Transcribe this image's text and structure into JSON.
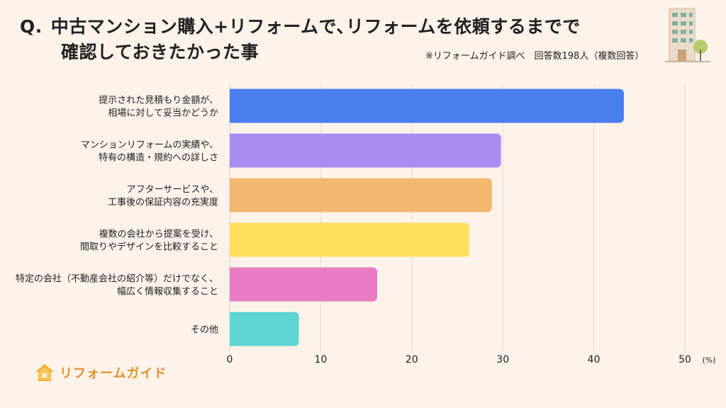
{
  "header": {
    "q_mark": "Q.",
    "title_line1": "中古マンション購入+リフォームで､リフォームを依頼するまでで",
    "title_line2": "確認しておきたかった事",
    "source_note": "※リフォームガイド調べ　回答数198人（複数回答）"
  },
  "logo": {
    "text": "リフォームガイド",
    "icon": "house-logo-icon"
  },
  "illustration": {
    "icon": "apartment-building-icon"
  },
  "chart_data": {
    "type": "bar",
    "orientation": "horizontal",
    "categories": [
      [
        "提示された見積もり金額が、",
        "相場に対して妥当かどうか"
      ],
      [
        "マンションリフォームの実績や、",
        "特有の構造・規約への詳しさ"
      ],
      [
        "アフターサービスや、",
        "工事後の保証内容の充実度"
      ],
      [
        "複数の会社から提案を受け、",
        "間取りやデザインを比較すること"
      ],
      [
        "特定の会社（不動産会社の紹介等）だけでなく、",
        "幅広く情報収集すること"
      ],
      [
        "その他"
      ]
    ],
    "values": [
      43.3,
      29.8,
      28.8,
      26.3,
      16.2,
      7.6
    ],
    "colors": [
      "#4a7ff0",
      "#a98cf0",
      "#f2b86e",
      "#ffde5c",
      "#e87bc3",
      "#5cd5d3"
    ],
    "xlim": [
      0,
      50
    ],
    "xticks": [
      0,
      10,
      20,
      30,
      40,
      50
    ],
    "unit_label": "(%)",
    "grid": true
  }
}
